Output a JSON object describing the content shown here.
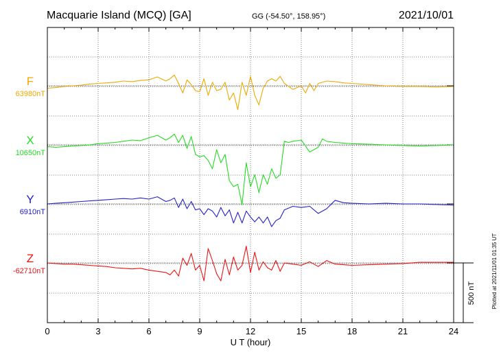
{
  "chart_data": {
    "type": "line",
    "title": "Macquarie Island (MCQ)  [GA]",
    "subtitle": "GG (-54.50°, 158.95°)",
    "date": "2021/10/01",
    "xlabel": "U T (hour)",
    "xlim": [
      0,
      24
    ],
    "xticks": [
      0,
      3,
      6,
      9,
      12,
      15,
      18,
      21,
      24
    ],
    "scale_label": "500 nT",
    "scale_nT": 500,
    "plotted_note": "Plotted at 2021/11/01 01:35 UT",
    "grid": true,
    "series": [
      {
        "name": "F",
        "baseline_label": "63980nT",
        "color": "#f0a800",
        "x": [
          0,
          0.5,
          1,
          1.5,
          2,
          2.5,
          3,
          3.5,
          4,
          4.5,
          5,
          5.5,
          6,
          6.5,
          7,
          7.25,
          7.5,
          7.75,
          8,
          8.25,
          8.5,
          8.75,
          9,
          9.25,
          9.5,
          9.75,
          10,
          10.25,
          10.5,
          10.75,
          11,
          11.25,
          11.5,
          11.75,
          12,
          12.25,
          12.5,
          12.75,
          13,
          13.25,
          13.5,
          13.75,
          14,
          14.5,
          15,
          15.25,
          15.5,
          15.75,
          16,
          16.5,
          17,
          17.5,
          18,
          19,
          20,
          21,
          22,
          23,
          24
        ],
        "values": [
          -20,
          -15,
          -5,
          0,
          5,
          15,
          20,
          25,
          30,
          40,
          35,
          45,
          50,
          75,
          40,
          60,
          90,
          20,
          -60,
          50,
          10,
          -40,
          -50,
          60,
          -80,
          30,
          -40,
          -30,
          30,
          -120,
          -60,
          -200,
          30,
          -80,
          80,
          -80,
          -160,
          -20,
          40,
          60,
          40,
          80,
          20,
          -30,
          0,
          -60,
          20,
          -40,
          20,
          40,
          35,
          25,
          20,
          10,
          0,
          -5,
          -5,
          -10,
          -5
        ]
      },
      {
        "name": "X",
        "baseline_label": "10650nT",
        "color": "#22dd22",
        "x": [
          0,
          0.5,
          1,
          1.5,
          2,
          2.5,
          3,
          3.5,
          4,
          4.5,
          5,
          5.5,
          6,
          6.5,
          7,
          7.25,
          7.5,
          7.75,
          8,
          8.25,
          8.5,
          8.75,
          9,
          9.25,
          9.5,
          9.75,
          10,
          10.25,
          10.5,
          10.75,
          11,
          11.25,
          11.5,
          11.75,
          12,
          12.25,
          12.5,
          12.75,
          13,
          13.25,
          13.5,
          13.75,
          14,
          14.25,
          14.5,
          15,
          15.5,
          16,
          16.25,
          16.5,
          17,
          17.5,
          18,
          19,
          20,
          21,
          22,
          23,
          24
        ],
        "values": [
          -15,
          -20,
          -15,
          -10,
          -5,
          0,
          10,
          15,
          20,
          30,
          40,
          35,
          60,
          80,
          40,
          60,
          90,
          20,
          80,
          -30,
          70,
          -80,
          -100,
          -90,
          -130,
          -200,
          -40,
          -150,
          -80,
          -300,
          -350,
          -330,
          -500,
          -150,
          -350,
          -250,
          -400,
          -250,
          -330,
          -200,
          -280,
          -250,
          30,
          20,
          30,
          40,
          -60,
          -20,
          50,
          30,
          20,
          15,
          10,
          5,
          0,
          -5,
          -10,
          -5,
          0
        ]
      },
      {
        "name": "Y",
        "baseline_label": "6910nT",
        "color": "#2020cc",
        "x": [
          0,
          0.5,
          1,
          1.5,
          2,
          2.5,
          3,
          3.5,
          4,
          4.5,
          5,
          5.5,
          6,
          6.5,
          7,
          7.25,
          7.5,
          7.75,
          8,
          8.25,
          8.5,
          8.75,
          9,
          9.25,
          9.5,
          9.75,
          10,
          10.25,
          10.5,
          10.75,
          11,
          11.25,
          11.5,
          11.75,
          12,
          12.25,
          12.5,
          12.75,
          13,
          13.25,
          13.5,
          13.75,
          14,
          14.5,
          15,
          15.5,
          16,
          16.5,
          17,
          17.5,
          18,
          19,
          20,
          21,
          22,
          23,
          24
        ],
        "values": [
          0,
          5,
          10,
          15,
          20,
          25,
          30,
          35,
          40,
          45,
          40,
          50,
          40,
          60,
          20,
          30,
          50,
          -30,
          40,
          -40,
          20,
          -50,
          -40,
          -90,
          -40,
          -60,
          -110,
          -30,
          -100,
          -50,
          -160,
          -70,
          -160,
          -60,
          -110,
          -150,
          -110,
          -160,
          -110,
          -190,
          -140,
          -120,
          -50,
          -20,
          -30,
          -20,
          -80,
          -40,
          30,
          10,
          5,
          0,
          5,
          0,
          0,
          -5,
          -10
        ]
      },
      {
        "name": "Z",
        "baseline_label": "-62710nT",
        "color": "#ee1111",
        "x": [
          0,
          0.5,
          1,
          1.5,
          2,
          2.5,
          3,
          3.5,
          4,
          4.5,
          5,
          5.5,
          6,
          6.5,
          7,
          7.25,
          7.5,
          7.75,
          8,
          8.25,
          8.5,
          8.75,
          9,
          9.25,
          9.5,
          9.75,
          10,
          10.25,
          10.5,
          10.75,
          11,
          11.25,
          11.5,
          11.75,
          12,
          12.25,
          12.5,
          12.75,
          13,
          13.25,
          13.5,
          13.75,
          14,
          14.5,
          15,
          15.5,
          16,
          16.5,
          17,
          17.5,
          18,
          19,
          20,
          21,
          22,
          23,
          24
        ],
        "values": [
          0,
          -5,
          -10,
          -10,
          -15,
          -20,
          -25,
          -30,
          -40,
          -45,
          -50,
          -45,
          -60,
          -70,
          -80,
          -100,
          -60,
          -110,
          40,
          -20,
          80,
          -60,
          -20,
          -150,
          120,
          20,
          -90,
          -150,
          30,
          -100,
          50,
          -60,
          -20,
          140,
          -80,
          90,
          -60,
          10,
          -40,
          -60,
          20,
          -70,
          0,
          -10,
          -20,
          10,
          -30,
          20,
          -10,
          -15,
          -20,
          -15,
          -10,
          -5,
          5,
          5,
          5
        ]
      }
    ]
  }
}
